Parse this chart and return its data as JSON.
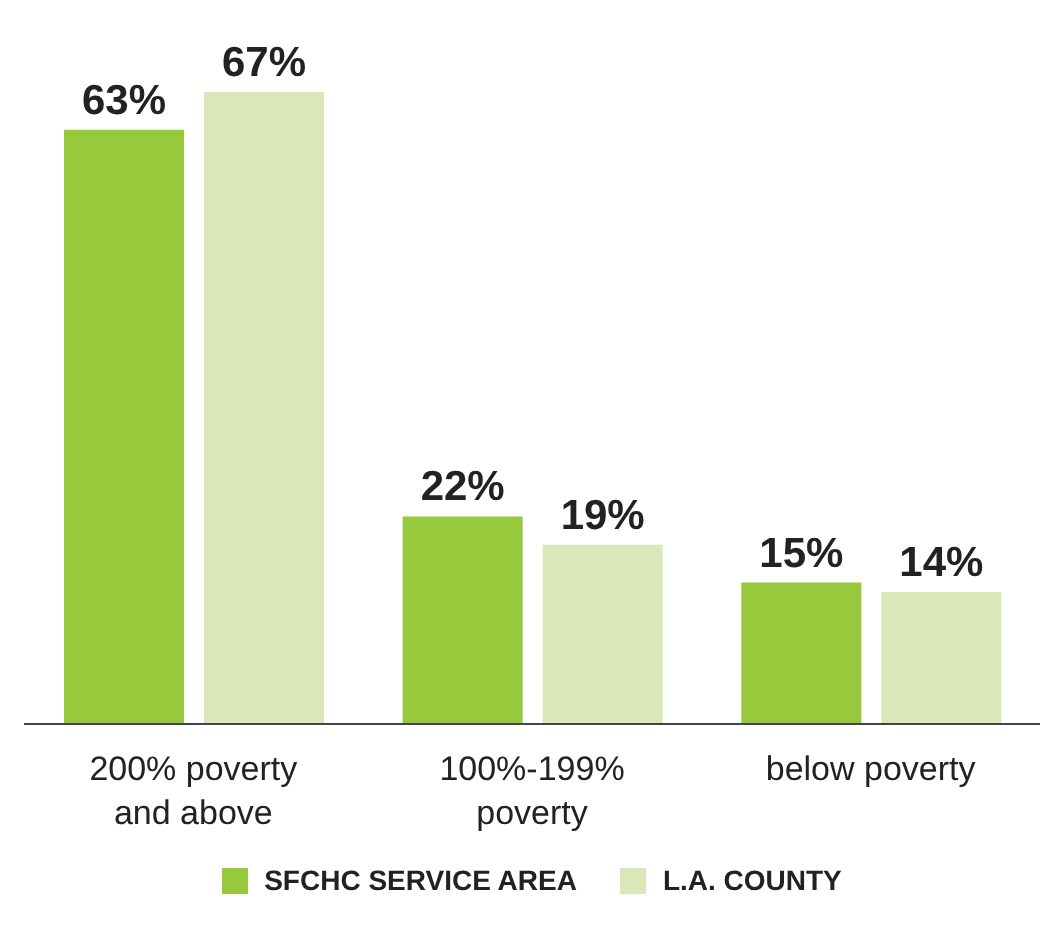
{
  "chart_data": {
    "type": "bar",
    "categories": [
      "200% poverty and above",
      "100%-199% poverty",
      "below poverty"
    ],
    "series": [
      {
        "name": "SFCHC SERVICE AREA",
        "color": "#97c93c",
        "values": [
          63,
          22,
          15
        ],
        "value_labels": [
          "63%",
          "22%",
          "15%"
        ]
      },
      {
        "name": "L.A. COUNTY",
        "color": "#dae8b9",
        "values": [
          67,
          19,
          14
        ],
        "value_labels": [
          "67%",
          "19%",
          "14%"
        ]
      }
    ],
    "legend": "bottom"
  }
}
